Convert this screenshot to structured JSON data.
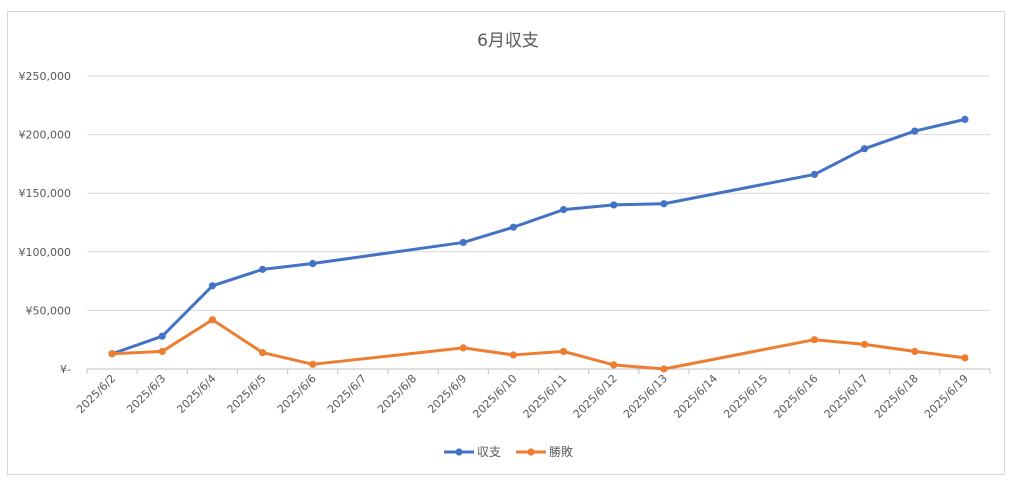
{
  "chart_data": {
    "type": "line",
    "title": "6月収支",
    "categories": [
      "2025/6/2",
      "2025/6/3",
      "2025/6/4",
      "2025/6/5",
      "2025/6/6",
      "2025/6/7",
      "2025/6/8",
      "2025/6/9",
      "2025/6/10",
      "2025/6/11",
      "2025/6/12",
      "2025/6/13",
      "2025/6/14",
      "2025/6/15",
      "2025/6/16",
      "2025/6/17",
      "2025/6/18",
      "2025/6/19"
    ],
    "y_tick_labels": [
      "¥-",
      "¥50,000",
      "¥100,000",
      "¥150,000",
      "¥200,000",
      "¥250,000"
    ],
    "ylim": [
      0,
      250000
    ],
    "grid": true,
    "legend_position": "bottom",
    "series": [
      {
        "name": "収支",
        "color": "#4472c4",
        "values": [
          13000,
          28000,
          71000,
          85000,
          90000,
          null,
          null,
          108000,
          121000,
          136000,
          140000,
          141000,
          null,
          null,
          166000,
          188000,
          203000,
          213000
        ]
      },
      {
        "name": "勝敗",
        "color": "#ed7d31",
        "values": [
          13000,
          15000,
          42000,
          14000,
          4000,
          null,
          null,
          18000,
          12000,
          15000,
          3500,
          0,
          null,
          null,
          25000,
          21000,
          15000,
          9500
        ]
      }
    ]
  }
}
